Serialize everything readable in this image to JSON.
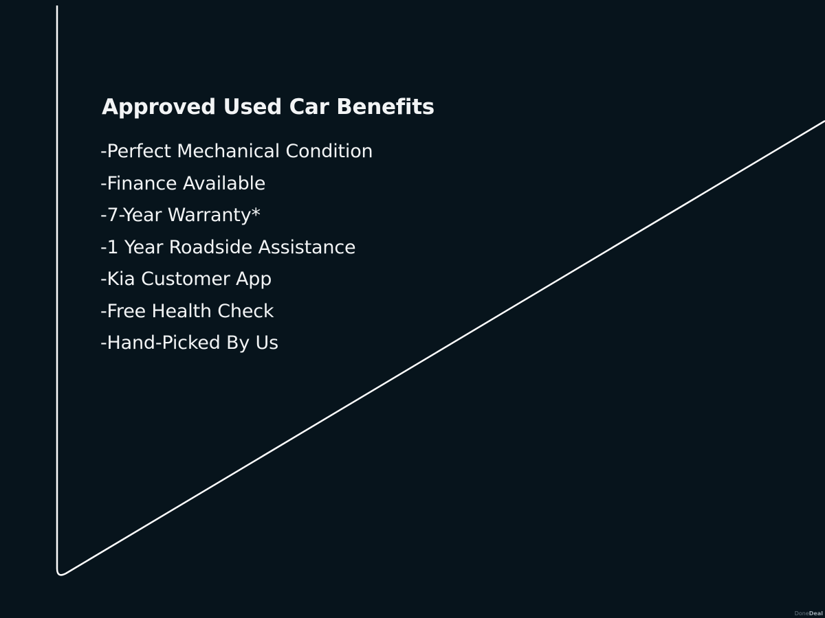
{
  "heading": "Approved Used Car Benefits",
  "benefits": [
    "-Perfect Mechanical Condition",
    "-Finance Available",
    "-7-Year Warranty*",
    "-1 Year Roadside Assistance",
    "-Kia Customer App",
    "-Free Health Check",
    "-Hand-Picked By Us"
  ],
  "watermark": {
    "part1": "Done",
    "part2": "Deal"
  },
  "colors": {
    "background": "#07141c",
    "text": "#f2f4f5",
    "line": "#ffffff"
  }
}
